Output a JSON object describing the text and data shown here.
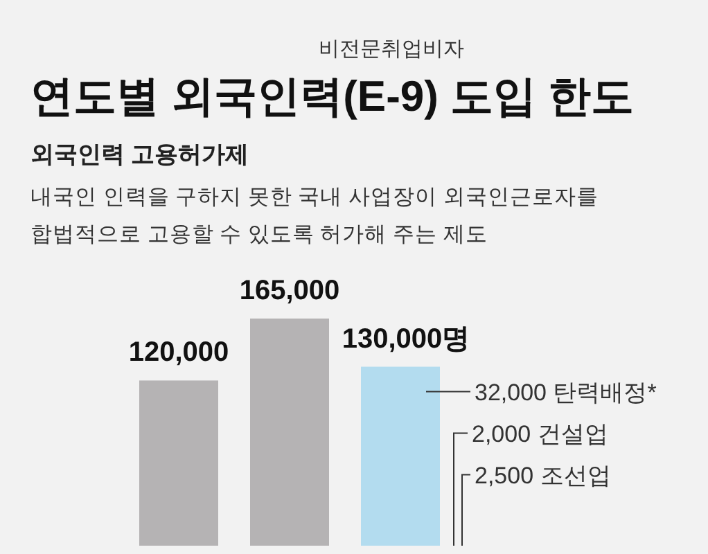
{
  "chart_data": {
    "type": "bar",
    "title": "연도별 외국인력(E-9) 도입 한도",
    "subtitle": "비전문취업비자",
    "categories": [
      null,
      null,
      null
    ],
    "values": [
      120000,
      165000,
      130000
    ],
    "colors": [
      "#b5b3b4",
      "#b5b3b4",
      "#b3dcef"
    ],
    "value_labels": [
      "120,000",
      "165,000",
      "130,000명"
    ],
    "annotations": [
      "외국인력 고용허가제",
      "내국인 인력을 구하지 못한 국내 사업장이 외국인근로자를 합법적으로 고용할 수 있도록 허가해 주는 제도",
      "32,000 탄력배정*",
      "2,000 건설업",
      "2,500 조선업"
    ]
  }
}
